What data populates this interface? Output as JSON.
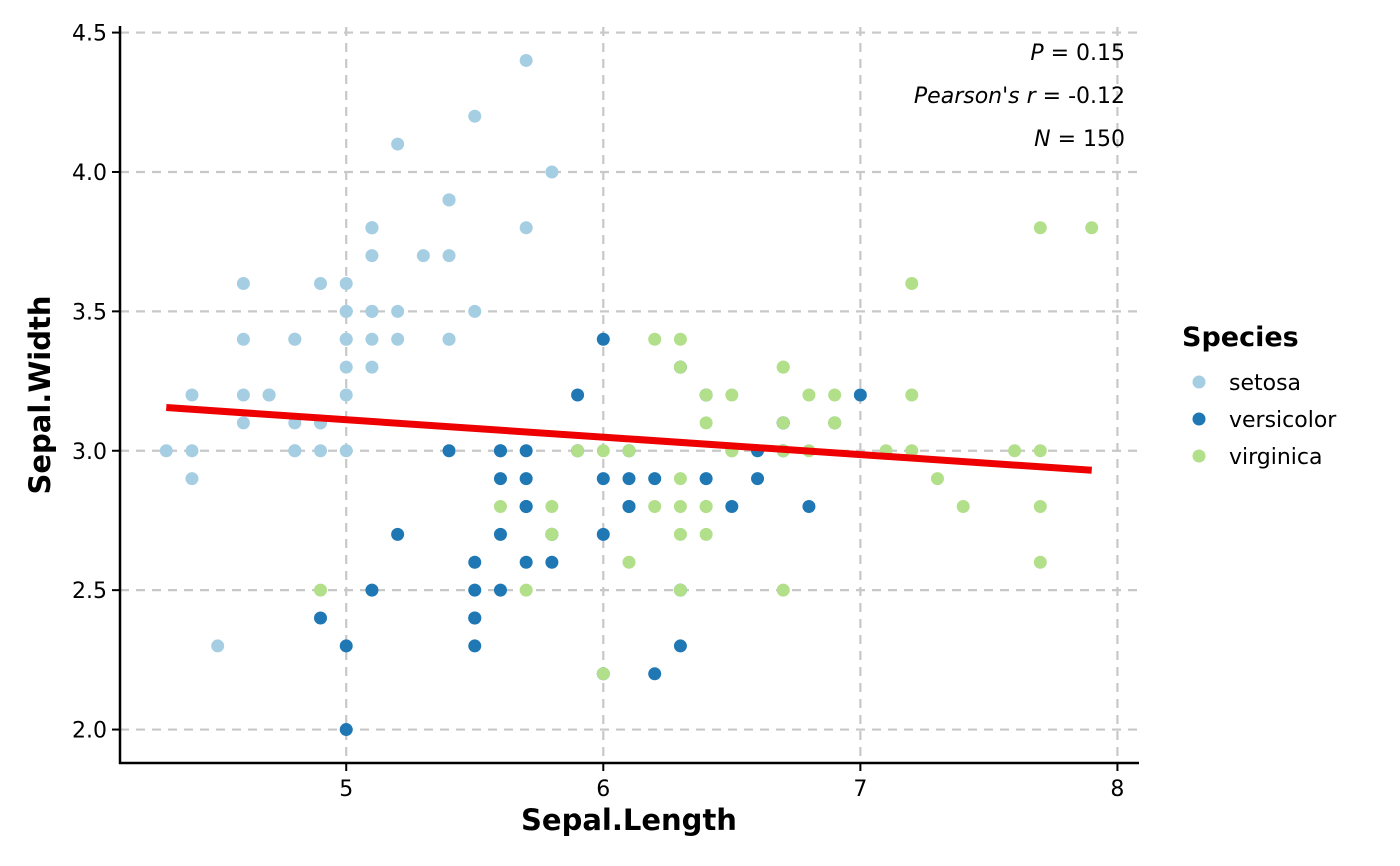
{
  "chart_data": {
    "type": "scatter",
    "xlabel": "Sepal.Length",
    "ylabel": "Sepal.Width",
    "xlim": [
      4.12,
      8.08
    ],
    "ylim": [
      1.88,
      4.52
    ],
    "xticks": [
      "5",
      "6",
      "7",
      "8"
    ],
    "yticks": [
      "2.0",
      "2.5",
      "3.0",
      "3.5",
      "4.0",
      "4.5"
    ],
    "grid": true,
    "legend": {
      "title": "Species",
      "placement": "right"
    },
    "annotations": [
      {
        "label": "P",
        "value": " = 0.15"
      },
      {
        "label": "Pearson's r",
        "value": " = -0.12"
      },
      {
        "label": "N",
        "value": " = 150"
      }
    ],
    "regression": {
      "color": "#EE0000",
      "x": [
        4.3,
        7.9
      ],
      "y": [
        3.155,
        2.93
      ]
    },
    "series": [
      {
        "name": "setosa",
        "color": "#A6CEE3",
        "points": [
          [
            5.1,
            3.5
          ],
          [
            4.9,
            3.0
          ],
          [
            4.7,
            3.2
          ],
          [
            4.6,
            3.1
          ],
          [
            5.0,
            3.6
          ],
          [
            5.4,
            3.9
          ],
          [
            4.6,
            3.4
          ],
          [
            5.0,
            3.4
          ],
          [
            4.4,
            2.9
          ],
          [
            4.9,
            3.1
          ],
          [
            5.4,
            3.7
          ],
          [
            4.8,
            3.4
          ],
          [
            4.8,
            3.0
          ],
          [
            4.3,
            3.0
          ],
          [
            5.8,
            4.0
          ],
          [
            5.7,
            4.4
          ],
          [
            5.4,
            3.9
          ],
          [
            5.1,
            3.5
          ],
          [
            5.7,
            3.8
          ],
          [
            5.1,
            3.8
          ],
          [
            5.4,
            3.4
          ],
          [
            5.1,
            3.7
          ],
          [
            4.6,
            3.6
          ],
          [
            5.1,
            3.3
          ],
          [
            4.8,
            3.4
          ],
          [
            5.0,
            3.0
          ],
          [
            5.0,
            3.4
          ],
          [
            5.2,
            3.5
          ],
          [
            5.2,
            3.4
          ],
          [
            4.7,
            3.2
          ],
          [
            4.8,
            3.1
          ],
          [
            5.4,
            3.4
          ],
          [
            5.2,
            4.1
          ],
          [
            5.5,
            4.2
          ],
          [
            4.9,
            3.1
          ],
          [
            5.0,
            3.2
          ],
          [
            5.5,
            3.5
          ],
          [
            4.9,
            3.6
          ],
          [
            4.4,
            3.0
          ],
          [
            5.1,
            3.4
          ],
          [
            5.0,
            3.5
          ],
          [
            4.5,
            2.3
          ],
          [
            4.4,
            3.2
          ],
          [
            5.0,
            3.5
          ],
          [
            5.1,
            3.8
          ],
          [
            4.8,
            3.0
          ],
          [
            5.1,
            3.8
          ],
          [
            4.6,
            3.2
          ],
          [
            5.3,
            3.7
          ],
          [
            5.0,
            3.3
          ]
        ]
      },
      {
        "name": "versicolor",
        "color": "#1F78B4",
        "points": [
          [
            7.0,
            3.2
          ],
          [
            6.4,
            3.2
          ],
          [
            6.9,
            3.1
          ],
          [
            5.5,
            2.3
          ],
          [
            6.5,
            2.8
          ],
          [
            5.7,
            2.8
          ],
          [
            6.3,
            3.3
          ],
          [
            4.9,
            2.4
          ],
          [
            6.6,
            2.9
          ],
          [
            5.2,
            2.7
          ],
          [
            5.0,
            2.0
          ],
          [
            5.9,
            3.0
          ],
          [
            6.0,
            2.2
          ],
          [
            6.1,
            2.9
          ],
          [
            5.6,
            2.9
          ],
          [
            6.7,
            3.1
          ],
          [
            5.6,
            3.0
          ],
          [
            5.8,
            2.7
          ],
          [
            6.2,
            2.2
          ],
          [
            5.6,
            2.5
          ],
          [
            5.9,
            3.2
          ],
          [
            6.1,
            2.8
          ],
          [
            6.3,
            2.5
          ],
          [
            6.1,
            2.8
          ],
          [
            6.4,
            2.9
          ],
          [
            6.6,
            3.0
          ],
          [
            6.8,
            2.8
          ],
          [
            6.7,
            3.0
          ],
          [
            6.0,
            2.9
          ],
          [
            5.7,
            2.6
          ],
          [
            5.5,
            2.4
          ],
          [
            5.5,
            2.4
          ],
          [
            5.8,
            2.7
          ],
          [
            6.0,
            2.7
          ],
          [
            5.4,
            3.0
          ],
          [
            6.0,
            3.4
          ],
          [
            6.7,
            3.1
          ],
          [
            6.3,
            2.3
          ],
          [
            5.6,
            3.0
          ],
          [
            5.5,
            2.5
          ],
          [
            5.5,
            2.6
          ],
          [
            6.1,
            3.0
          ],
          [
            5.8,
            2.6
          ],
          [
            5.0,
            2.3
          ],
          [
            5.6,
            2.7
          ],
          [
            5.7,
            3.0
          ],
          [
            5.7,
            2.9
          ],
          [
            6.2,
            2.9
          ],
          [
            5.1,
            2.5
          ],
          [
            5.7,
            2.8
          ]
        ]
      },
      {
        "name": "virginica",
        "color": "#B2DF8A",
        "points": [
          [
            6.3,
            3.3
          ],
          [
            5.8,
            2.7
          ],
          [
            7.1,
            3.0
          ],
          [
            6.3,
            2.9
          ],
          [
            6.5,
            3.0
          ],
          [
            7.6,
            3.0
          ],
          [
            4.9,
            2.5
          ],
          [
            7.3,
            2.9
          ],
          [
            6.7,
            2.5
          ],
          [
            7.2,
            3.6
          ],
          [
            6.5,
            3.2
          ],
          [
            6.4,
            2.7
          ],
          [
            6.8,
            3.0
          ],
          [
            5.7,
            2.5
          ],
          [
            5.8,
            2.8
          ],
          [
            6.4,
            3.2
          ],
          [
            6.5,
            3.0
          ],
          [
            7.7,
            3.8
          ],
          [
            7.7,
            2.6
          ],
          [
            6.0,
            2.2
          ],
          [
            6.9,
            3.2
          ],
          [
            5.6,
            2.8
          ],
          [
            7.7,
            2.8
          ],
          [
            6.3,
            2.7
          ],
          [
            6.7,
            3.3
          ],
          [
            7.2,
            3.2
          ],
          [
            6.2,
            2.8
          ],
          [
            6.1,
            3.0
          ],
          [
            6.4,
            2.8
          ],
          [
            7.2,
            3.0
          ],
          [
            7.4,
            2.8
          ],
          [
            7.9,
            3.8
          ],
          [
            6.4,
            2.8
          ],
          [
            6.3,
            2.8
          ],
          [
            6.1,
            2.6
          ],
          [
            7.7,
            3.0
          ],
          [
            6.3,
            3.4
          ],
          [
            6.4,
            3.1
          ],
          [
            6.0,
            3.0
          ],
          [
            6.9,
            3.1
          ],
          [
            6.7,
            3.1
          ],
          [
            6.9,
            3.1
          ],
          [
            5.8,
            2.7
          ],
          [
            6.8,
            3.2
          ],
          [
            6.7,
            3.3
          ],
          [
            6.7,
            3.0
          ],
          [
            6.3,
            2.5
          ],
          [
            6.5,
            3.0
          ],
          [
            6.2,
            3.4
          ],
          [
            5.9,
            3.0
          ]
        ]
      }
    ]
  }
}
